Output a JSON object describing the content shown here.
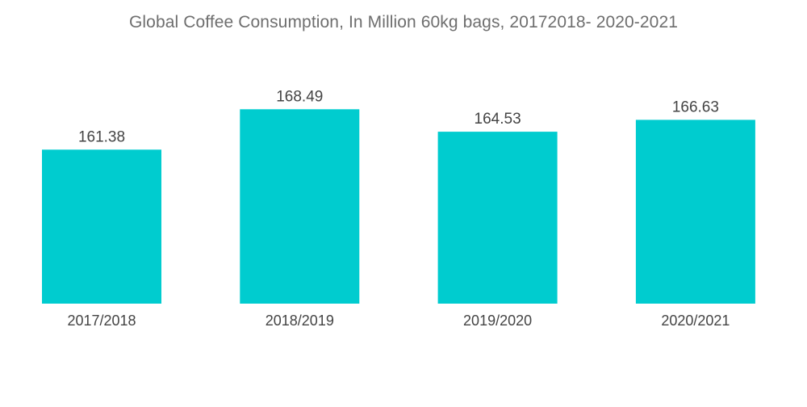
{
  "chart_data": {
    "type": "bar",
    "title": "Global Coffee Consumption, In Million 60kg bags, 20172018- 2020-2021",
    "categories": [
      "2017/2018",
      "2018/2019",
      "2019/2020",
      "2020/2021"
    ],
    "values": [
      161.38,
      168.49,
      164.53,
      166.63
    ],
    "value_labels": [
      "161.38",
      "168.49",
      "164.53",
      "166.63"
    ],
    "bar_color": "#00cccf",
    "xlabel": "",
    "ylabel": "",
    "grid": false,
    "legend": "none"
  }
}
